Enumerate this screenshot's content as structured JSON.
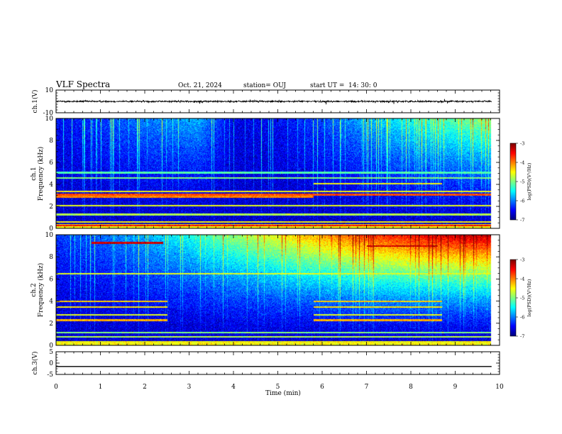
{
  "header": {
    "title": "VLF Spectra",
    "date": "Oct. 21, 2024",
    "station": "station= OUJ",
    "start_label": "start  UT  =",
    "start_time": "14: 30: 0"
  },
  "chart_data": [
    {
      "type": "line",
      "name": "ch1-waveform",
      "ylabel": "ch.1(V)",
      "ylim": [
        -10,
        10
      ],
      "yticks": [
        10,
        -10
      ],
      "xlim": [
        0,
        10
      ],
      "baseline": 0,
      "noise_amplitude": 1.5,
      "x_end": 9.82
    },
    {
      "type": "heatmap",
      "name": "ch1-spectrogram",
      "ylabel_top": "ch.1",
      "ylabel": "Frequency  (kHz)",
      "ylim": [
        0,
        10
      ],
      "yticks": [
        0,
        2,
        4,
        6,
        8,
        10
      ],
      "xlim": [
        0,
        10
      ],
      "x_end": 9.82,
      "colorbar": {
        "label": "log(PSD)(V²/Hz)",
        "ticks": [
          -3,
          -4,
          -5,
          -6,
          -7
        ],
        "range": [
          -7,
          -3
        ]
      },
      "noise_floor_profile": [
        [
          0,
          -6.5
        ],
        [
          0.5,
          -6.4
        ],
        [
          2,
          -6.0
        ],
        [
          3.2,
          -5.8
        ],
        [
          4,
          -6.6
        ],
        [
          5,
          -6.5
        ],
        [
          6,
          -6.2
        ],
        [
          7,
          -5.8
        ],
        [
          8,
          -5.4
        ],
        [
          10,
          -4.8
        ]
      ],
      "bands": [
        {
          "f": 0.3,
          "x": [
            0,
            9.82
          ],
          "level": -3.5
        },
        {
          "f": 0.6,
          "x": [
            0,
            9.82
          ],
          "level": -4.5
        },
        {
          "f": 1.3,
          "x": [
            0,
            9.82
          ],
          "level": -4.8
        },
        {
          "f": 2.1,
          "x": [
            0,
            9.82
          ],
          "level": -4.6
        },
        {
          "f": 2.9,
          "x": [
            0,
            5.8
          ],
          "level": -4.0
        },
        {
          "f": 3.1,
          "x": [
            0,
            9.82
          ],
          "level": -3.8
        },
        {
          "f": 3.4,
          "x": [
            0,
            9.82
          ],
          "level": -4.5
        },
        {
          "f": 4.1,
          "x": [
            5.8,
            8.7
          ],
          "level": -4.5
        },
        {
          "f": 4.6,
          "x": [
            0,
            9.82
          ],
          "level": -5.0
        },
        {
          "f": 5.1,
          "x": [
            0,
            9.82
          ],
          "level": -5.2
        }
      ]
    },
    {
      "type": "heatmap",
      "name": "ch2-spectrogram",
      "ylabel_top": "ch.2",
      "ylabel": "Frequency  (kHz)",
      "ylim": [
        0,
        10
      ],
      "yticks": [
        0,
        2,
        4,
        6,
        8,
        10
      ],
      "xlim": [
        0,
        10
      ],
      "x_end": 9.82,
      "colorbar": {
        "label": "log(PSD)(V²/Hz)",
        "ticks": [
          -3,
          -4,
          -5,
          -6,
          -7
        ],
        "range": [
          -7,
          -3
        ]
      },
      "noise_floor_profile": [
        [
          0,
          -6.3
        ],
        [
          1,
          -6.1
        ],
        [
          2,
          -5.8
        ],
        [
          3,
          -5.4
        ],
        [
          4,
          -4.9
        ],
        [
          5,
          -4.5
        ],
        [
          6,
          -4.1
        ],
        [
          7,
          -3.7
        ],
        [
          8,
          -3.5
        ],
        [
          9,
          -3.3
        ],
        [
          10,
          -3.2
        ]
      ],
      "bands": [
        {
          "f": 0.8,
          "x": [
            0,
            9.82
          ],
          "level": -4.8
        },
        {
          "f": 1.2,
          "x": [
            0,
            9.82
          ],
          "level": -5.0
        },
        {
          "f": 2.3,
          "x": [
            0,
            2.5
          ],
          "level": -4.2
        },
        {
          "f": 2.3,
          "x": [
            5.8,
            8.7
          ],
          "level": -4.2
        },
        {
          "f": 2.8,
          "x": [
            0,
            2.5
          ],
          "level": -4.6
        },
        {
          "f": 2.8,
          "x": [
            5.8,
            8.7
          ],
          "level": -4.6
        },
        {
          "f": 3.5,
          "x": [
            0,
            2.5
          ],
          "level": -4.4
        },
        {
          "f": 3.5,
          "x": [
            5.8,
            8.7
          ],
          "level": -4.4
        },
        {
          "f": 4.0,
          "x": [
            0,
            2.5
          ],
          "level": -4.3
        },
        {
          "f": 4.0,
          "x": [
            5.8,
            8.7
          ],
          "level": -4.3
        },
        {
          "f": 6.5,
          "x": [
            0,
            9.82
          ],
          "level": -4.6
        },
        {
          "f": 9.3,
          "x": [
            0.8,
            2.4
          ],
          "level": -3.3
        },
        {
          "f": 9.0,
          "x": [
            7.0,
            8.6
          ],
          "level": -3.3
        }
      ]
    },
    {
      "type": "line",
      "name": "ch3-waveform",
      "ylabel": "ch.3(V)",
      "ylim": [
        -5,
        5
      ],
      "yticks": [
        5,
        0,
        -5
      ],
      "xlim": [
        0,
        10
      ],
      "baseline": -1.5,
      "noise_amplitude": 0,
      "x_end": 9.82
    }
  ],
  "xaxis": {
    "label": "Time  (min)",
    "ticks": [
      0,
      1,
      2,
      3,
      4,
      5,
      6,
      7,
      8,
      9,
      10
    ],
    "range": [
      0,
      10
    ]
  }
}
